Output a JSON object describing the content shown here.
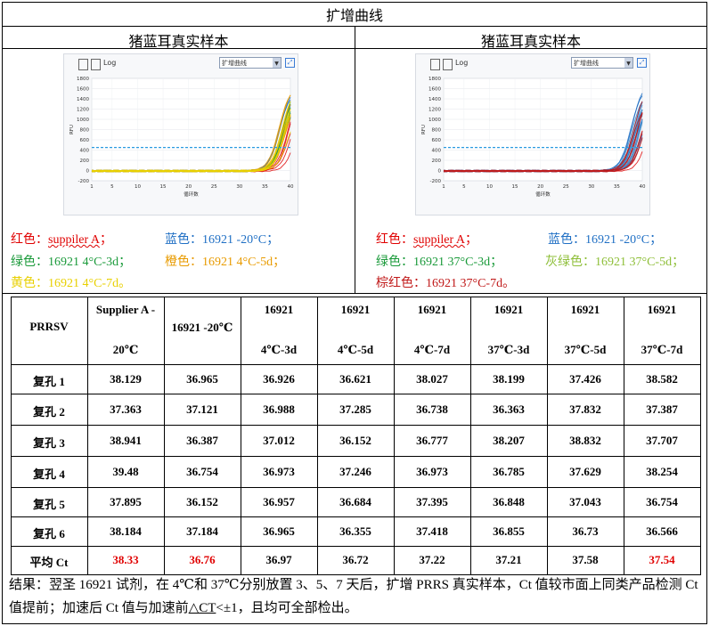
{
  "title": "扩增曲线",
  "panels": [
    {
      "header": "猪蓝耳真实样本",
      "toolbar": {
        "log_label": "Log",
        "select_value": "扩增曲线"
      },
      "legend": [
        {
          "label": "红色：",
          "value": "suppiler A",
          "sep": "；",
          "color": "#e00000",
          "underline": true
        },
        {
          "label": "蓝色：",
          "value": "16921 -20°C",
          "sep": "；",
          "color": "#1f6fc4"
        },
        {
          "label": "绿色：",
          "value": "16921 4°C-3d",
          "sep": "；",
          "color": "#1a9a3a"
        },
        {
          "label": "橙色：",
          "value": "16921 4°C-5d",
          "sep": "；",
          "color": "#e89b00"
        },
        {
          "label": "黄色：",
          "value": "16921 4°C-7d",
          "sep": "。",
          "color": "#e8d000"
        }
      ]
    },
    {
      "header": "猪蓝耳真实样本",
      "toolbar": {
        "log_label": "Log",
        "select_value": "扩增曲线"
      },
      "legend": [
        {
          "label": "红色：",
          "value": "suppiler A",
          "sep": "；",
          "color": "#e00000",
          "underline": true
        },
        {
          "label": "蓝色：",
          "value": "16921 -20°C",
          "sep": "；",
          "color": "#1f6fc4"
        },
        {
          "label": "绿色：",
          "value": "16921 37°C-3d",
          "sep": "；",
          "color": "#1a9a3a"
        },
        {
          "label": "灰绿色：",
          "value": "16921 37°C-5d",
          "sep": "；",
          "color": "#8fbf3a"
        },
        {
          "label": "棕红色：",
          "value": "16921 37°C-7d",
          "sep": "。",
          "color": "#c01818"
        }
      ]
    }
  ],
  "chart_data": [
    {
      "type": "line",
      "title": "",
      "xlabel": "循环数",
      "ylabel": "RFU",
      "x_ticks": [
        1,
        5,
        10,
        15,
        20,
        25,
        30,
        35,
        40
      ],
      "y_ticks": [
        -200,
        0,
        200,
        400,
        600,
        800,
        1000,
        1200,
        1400,
        1600,
        1800
      ],
      "xlim": [
        1,
        40
      ],
      "ylim": [
        -200,
        1800
      ],
      "threshold": 450,
      "series": [
        {
          "color": "#e01010",
          "ct": [
            38.129,
            37.363,
            38.941,
            39.48,
            37.895,
            38.184
          ]
        },
        {
          "color": "#1f6fc4",
          "ct": [
            36.965,
            37.121,
            36.387,
            36.754,
            36.152,
            37.184
          ]
        },
        {
          "color": "#1a9a3a",
          "ct": [
            36.926,
            36.988,
            37.012,
            36.973,
            36.957,
            36.965
          ]
        },
        {
          "color": "#e89b00",
          "ct": [
            36.621,
            37.285,
            36.152,
            37.246,
            36.684,
            36.355
          ]
        },
        {
          "color": "#e8d000",
          "ct": [
            38.027,
            36.738,
            36.777,
            36.973,
            37.395,
            37.418
          ]
        }
      ]
    },
    {
      "type": "line",
      "title": "",
      "xlabel": "循环数",
      "ylabel": "RFU",
      "x_ticks": [
        1,
        5,
        10,
        15,
        20,
        25,
        30,
        35,
        40
      ],
      "y_ticks": [
        -200,
        0,
        200,
        400,
        600,
        800,
        1000,
        1200,
        1400,
        1600,
        1800
      ],
      "xlim": [
        1,
        40
      ],
      "ylim": [
        -200,
        1800
      ],
      "threshold": 450,
      "series": [
        {
          "color": "#e01010",
          "ct": [
            38.129,
            37.363,
            38.941,
            39.48,
            37.895,
            38.184
          ]
        },
        {
          "color": "#1f6fc4",
          "ct": [
            36.965,
            37.121,
            36.387,
            36.754,
            36.152,
            37.184
          ]
        },
        {
          "color": "#2f86c8",
          "ct": [
            38.199,
            36.363,
            38.207,
            36.785,
            36.848,
            36.855
          ]
        },
        {
          "color": "#4a90d0",
          "ct": [
            37.426,
            37.832,
            38.832,
            37.629,
            37.043,
            36.73
          ]
        },
        {
          "color": "#c01818",
          "ct": [
            38.582,
            37.387,
            37.707,
            38.254,
            36.754,
            36.566
          ]
        }
      ]
    }
  ],
  "table": {
    "corner": "PRRSV",
    "columns": [
      {
        "line1": "Supplier A -",
        "line2": "20℃"
      },
      {
        "line1": "",
        "line2": "16921 -20℃"
      },
      {
        "line1": "16921",
        "line2": "4℃-3d"
      },
      {
        "line1": "16921",
        "line2": "4℃-5d"
      },
      {
        "line1": "16921",
        "line2": "4℃-7d"
      },
      {
        "line1": "16921",
        "line2": "37℃-3d"
      },
      {
        "line1": "16921",
        "line2": "37℃-5d"
      },
      {
        "line1": "16921",
        "line2": "37℃-7d"
      }
    ],
    "rows": [
      {
        "label": "复孔 1",
        "values": [
          "38.129",
          "36.965",
          "36.926",
          "36.621",
          "38.027",
          "38.199",
          "37.426",
          "38.582"
        ]
      },
      {
        "label": "复孔 2",
        "values": [
          "37.363",
          "37.121",
          "36.988",
          "37.285",
          "36.738",
          "36.363",
          "37.832",
          "37.387"
        ]
      },
      {
        "label": "复孔 3",
        "values": [
          "38.941",
          "36.387",
          "37.012",
          "36.152",
          "36.777",
          "38.207",
          "38.832",
          "37.707"
        ]
      },
      {
        "label": "复孔 4",
        "values": [
          "39.48",
          "36.754",
          "36.973",
          "37.246",
          "36.973",
          "36.785",
          "37.629",
          "38.254"
        ]
      },
      {
        "label": "复孔 5",
        "values": [
          "37.895",
          "36.152",
          "36.957",
          "36.684",
          "37.395",
          "36.848",
          "37.043",
          "36.754"
        ]
      },
      {
        "label": "复孔 6",
        "values": [
          "38.184",
          "37.184",
          "36.965",
          "36.355",
          "37.418",
          "36.855",
          "36.73",
          "36.566"
        ]
      }
    ],
    "average": {
      "label": "平均 Ct",
      "values": [
        "38.33",
        "36.76",
        "36.97",
        "36.72",
        "37.22",
        "37.21",
        "37.58",
        "37.54"
      ],
      "highlight": [
        true,
        true,
        false,
        false,
        false,
        false,
        false,
        true
      ],
      "highlight_color": "#e00000"
    }
  },
  "conclusion": {
    "part1": "结果：翌圣 16921 试剂，在 4℃和 37℃分别放置 3、5、7 天后，扩增 PRRS 真实样本，Ct 值较市面上同类产品检测 Ct 值提前；加速后 Ct 值与加速前",
    "underlined": "△CT",
    "part2": "<±1，且均可全部检出。"
  }
}
